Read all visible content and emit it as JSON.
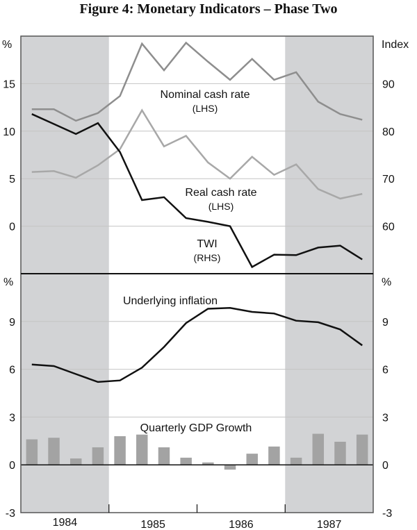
{
  "chart_data": {
    "title": "Figure 4: Monetary Indicators – Phase Two",
    "x_categories": [
      "1984",
      "1985",
      "1986",
      "1987"
    ],
    "quarters_per_year": 4,
    "shaded_years": [
      "1984",
      "1987"
    ],
    "colors": {
      "nominal": "#8e8e8e",
      "real": "#a8a8a8",
      "twi": "#111111",
      "inflation": "#111111",
      "gdp_bar": "#a3a3a3",
      "shade": "#d2d3d5",
      "grid": "#c4c4c4"
    },
    "panels": [
      {
        "name": "top",
        "type": "line",
        "left_axis": {
          "label": "%",
          "ylim": [
            -5,
            20
          ],
          "ticks": [
            "0",
            "5",
            "10",
            "15"
          ],
          "tick_values": [
            0,
            5,
            10,
            15
          ]
        },
        "right_axis": {
          "label": "Index",
          "ylim": [
            50,
            100
          ],
          "ticks": [
            "60",
            "70",
            "80",
            "90"
          ],
          "tick_values": [
            60,
            70,
            80,
            90
          ]
        },
        "series": [
          {
            "name": "Nominal cash rate",
            "axis": "LHS",
            "label": "Nominal cash rate",
            "sublabel": "(LHS)",
            "values": [
              12.3,
              12.3,
              11.1,
              11.9,
              13.7,
              19.2,
              16.4,
              19.3,
              17.3,
              15.4,
              17.6,
              15.4,
              16.2,
              13.1,
              11.8,
              11.2
            ]
          },
          {
            "name": "Real cash rate",
            "axis": "LHS",
            "label": "Real cash rate",
            "sublabel": "(LHS)",
            "values": [
              5.7,
              5.8,
              5.1,
              6.4,
              8.1,
              12.2,
              8.4,
              9.5,
              6.7,
              5.0,
              7.3,
              5.4,
              6.5,
              3.9,
              2.9,
              3.4
            ]
          },
          {
            "name": "TWI",
            "axis": "RHS",
            "label": "TWI",
            "sublabel": "(RHS)",
            "values": [
              83.6,
              81.5,
              79.4,
              81.7,
              75.6,
              65.5,
              66.1,
              61.7,
              60.9,
              60.0,
              51.4,
              54.0,
              53.9,
              55.5,
              55.9,
              53.0
            ]
          }
        ]
      },
      {
        "name": "bottom",
        "type": "line+bar",
        "left_axis": {
          "label": "%",
          "ylim": [
            -3,
            12
          ],
          "ticks": [
            "-3",
            "0",
            "3",
            "6",
            "9"
          ],
          "tick_values": [
            -3,
            0,
            3,
            6,
            9
          ]
        },
        "right_axis": {
          "label": "%",
          "ylim": [
            -3,
            12
          ],
          "ticks": [
            "-3",
            "0",
            "3",
            "6",
            "9"
          ],
          "tick_values": [
            -3,
            0,
            3,
            6,
            9
          ]
        },
        "series": [
          {
            "name": "Underlying inflation",
            "type": "line",
            "label": "Underlying inflation",
            "values": [
              6.3,
              6.2,
              5.7,
              5.2,
              5.3,
              6.1,
              7.4,
              8.9,
              9.8,
              9.85,
              9.6,
              9.5,
              9.05,
              8.95,
              8.5,
              7.5
            ]
          },
          {
            "name": "Quarterly GDP Growth",
            "type": "bar",
            "label": "Quarterly GDP Growth",
            "values": [
              1.6,
              1.7,
              0.4,
              1.1,
              1.8,
              1.9,
              1.1,
              0.45,
              0.15,
              -0.3,
              0.7,
              1.15,
              0.45,
              1.95,
              1.45,
              1.9
            ]
          }
        ]
      }
    ]
  }
}
